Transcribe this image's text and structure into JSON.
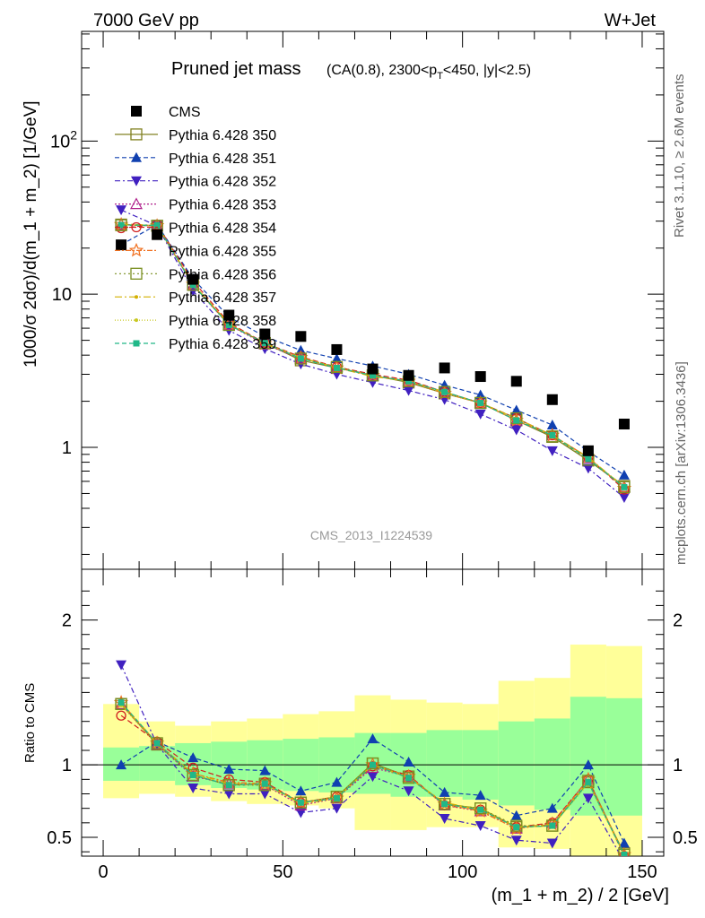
{
  "header": {
    "left": "7000 GeV pp",
    "right": "W+Jet"
  },
  "side_labels": {
    "rivet": "Rivet 3.1.10, ≥ 2.6M events",
    "mcplots": "mcplots.cern.ch [arXiv:1306.3436]"
  },
  "chart_data": [
    {
      "type": "scatter",
      "title_main": "Pruned jet mass",
      "title_sub_pre": "(CA(0.8), 2300<p",
      "title_sub_sub": "T",
      "title_sub_post": "<450, |y|<2.5)",
      "watermark": "CMS_2013_I1224539",
      "ylabel": "1000/σ 2dσ)/d(m_1 + m_2) [1/GeV]",
      "yscale": "log",
      "ylim": [
        0.16,
        520
      ],
      "xlim": [
        -6,
        156
      ],
      "x": [
        5,
        15,
        25,
        35,
        45,
        55,
        65,
        75,
        85,
        95,
        105,
        115,
        125,
        135,
        145
      ],
      "yticks": [
        "1",
        "10",
        "10^2"
      ],
      "series": [
        {
          "name": "CMS",
          "color": "#000000",
          "marker": "square-filled",
          "dash": "",
          "values": [
            21,
            24.5,
            12.5,
            7.3,
            5.5,
            5.3,
            4.35,
            3.25,
            2.95,
            3.3,
            2.9,
            2.7,
            2.05,
            0.95,
            1.42
          ]
        },
        {
          "name": "Pythia 6.428 350",
          "color": "#808020",
          "marker": "square-open",
          "dash": "",
          "values": [
            28.5,
            28,
            11.5,
            6.3,
            4.8,
            3.7,
            3.3,
            2.95,
            2.65,
            2.25,
            1.95,
            1.5,
            1.17,
            0.82,
            0.56
          ]
        },
        {
          "name": "Pythia 6.428 351",
          "color": "#1040b0",
          "marker": "triangle-up",
          "dash": "5,3",
          "values": [
            21,
            28.5,
            12.6,
            7.1,
            5.3,
            4.3,
            3.8,
            3.4,
            3.0,
            2.55,
            2.2,
            1.75,
            1.4,
            0.94,
            0.66
          ]
        },
        {
          "name": "Pythia 6.428 352",
          "color": "#4020c0",
          "marker": "triangle-down",
          "dash": "6,3,2,3",
          "values": [
            35.5,
            28,
            10.5,
            5.8,
            4.4,
            3.5,
            3.0,
            2.65,
            2.35,
            2.05,
            1.65,
            1.3,
            0.95,
            0.73,
            0.47
          ]
        },
        {
          "name": "Pythia 6.428 353",
          "color": "#b0208c",
          "marker": "triangle-open",
          "dash": "2,2",
          "values": [
            28.5,
            28,
            11.4,
            6.3,
            4.7,
            3.8,
            3.35,
            2.95,
            2.7,
            2.3,
            1.95,
            1.5,
            1.2,
            0.85,
            0.55
          ]
        },
        {
          "name": "Pythia 6.428 354",
          "color": "#d02020",
          "marker": "circle-open",
          "dash": "6,3",
          "values": [
            27,
            28.5,
            12.2,
            6.5,
            4.8,
            3.9,
            3.35,
            3.0,
            2.75,
            2.3,
            1.95,
            1.55,
            1.2,
            0.86,
            0.53
          ]
        },
        {
          "name": "Pythia 6.428 355",
          "color": "#f07020",
          "marker": "star-open",
          "dash": "6,2,2,2",
          "values": [
            28.5,
            28,
            11.6,
            6.4,
            4.75,
            3.85,
            3.3,
            2.95,
            2.7,
            2.25,
            1.95,
            1.5,
            1.2,
            0.86,
            0.54
          ]
        },
        {
          "name": "Pythia 6.428 356",
          "color": "#7a8f20",
          "marker": "square-open",
          "dash": "2,3",
          "values": [
            28.2,
            28,
            11.5,
            6.3,
            4.8,
            3.8,
            3.35,
            2.95,
            2.7,
            2.3,
            1.95,
            1.55,
            1.18,
            0.83,
            0.55
          ]
        },
        {
          "name": "Pythia 6.428 357",
          "color": "#d4b000",
          "marker": "dot",
          "dash": "8,3,2,3",
          "values": [
            28.7,
            28.2,
            11.7,
            6.4,
            4.75,
            3.85,
            3.3,
            2.9,
            2.7,
            2.3,
            1.95,
            1.55,
            1.2,
            0.86,
            0.55
          ]
        },
        {
          "name": "Pythia 6.428 358",
          "color": "#c8c820",
          "marker": "dot",
          "dash": "1,2",
          "values": [
            28.4,
            28,
            11.6,
            6.35,
            4.8,
            3.85,
            3.35,
            2.95,
            2.7,
            2.25,
            1.95,
            1.5,
            1.2,
            0.84,
            0.56
          ]
        },
        {
          "name": "Pythia 6.428 359",
          "color": "#20b888",
          "marker": "square-filled-small",
          "dash": "5,3",
          "values": [
            28.3,
            28.2,
            11.5,
            6.3,
            4.8,
            3.8,
            3.3,
            2.95,
            2.7,
            2.3,
            1.95,
            1.5,
            1.2,
            0.84,
            0.55
          ]
        }
      ]
    },
    {
      "type": "line",
      "ylabel": "Ratio to CMS",
      "xlabel": "(m_1 + m_2) / 2 [GeV]",
      "ylim": [
        0.37,
        2.35
      ],
      "yticks": [
        "0.5",
        "1",
        "2"
      ],
      "xticks": [
        "0",
        "50",
        "100",
        "150"
      ],
      "band_edges": [
        0,
        10,
        20,
        30,
        40,
        50,
        60,
        70,
        80,
        90,
        100,
        110,
        120,
        130,
        140,
        150
      ],
      "band_yellow": [
        [
          0.77,
          1.42
        ],
        [
          0.8,
          1.3
        ],
        [
          0.78,
          1.27
        ],
        [
          0.75,
          1.3
        ],
        [
          0.73,
          1.32
        ],
        [
          0.72,
          1.35
        ],
        [
          0.7,
          1.37
        ],
        [
          0.55,
          1.48
        ],
        [
          0.55,
          1.45
        ],
        [
          0.57,
          1.43
        ],
        [
          0.57,
          1.42
        ],
        [
          0.43,
          1.58
        ],
        [
          0.42,
          1.6
        ],
        [
          0.3,
          1.83
        ],
        [
          0.3,
          1.82
        ]
      ],
      "band_green": [
        [
          0.89,
          1.12
        ],
        [
          0.89,
          1.13
        ],
        [
          0.86,
          1.15
        ],
        [
          0.84,
          1.16
        ],
        [
          0.83,
          1.17
        ],
        [
          0.82,
          1.18
        ],
        [
          0.81,
          1.19
        ],
        [
          0.8,
          1.22
        ],
        [
          0.78,
          1.22
        ],
        [
          0.78,
          1.24
        ],
        [
          0.76,
          1.24
        ],
        [
          0.72,
          1.3
        ],
        [
          0.69,
          1.32
        ],
        [
          0.65,
          1.47
        ],
        [
          0.65,
          1.46
        ]
      ],
      "ratios": [
        [
          1.42,
          1.14,
          0.93,
          0.86,
          0.87,
          0.74,
          0.78,
          1.01,
          0.92,
          0.73,
          0.7,
          0.57,
          0.58,
          0.88,
          0.39
        ],
        [
          1.0,
          1.16,
          1.05,
          0.97,
          0.96,
          0.82,
          0.88,
          1.18,
          1.02,
          0.81,
          0.79,
          0.65,
          0.7,
          1.0,
          0.46
        ],
        [
          1.69,
          1.14,
          0.84,
          0.8,
          0.8,
          0.67,
          0.7,
          0.92,
          0.82,
          0.63,
          0.58,
          0.48,
          0.46,
          0.77,
          0.33
        ],
        [
          1.42,
          1.14,
          0.92,
          0.87,
          0.86,
          0.72,
          0.77,
          0.98,
          0.92,
          0.72,
          0.68,
          0.56,
          0.6,
          0.9,
          0.38
        ],
        [
          1.34,
          1.16,
          0.98,
          0.9,
          0.88,
          0.74,
          0.78,
          0.99,
          0.93,
          0.72,
          0.69,
          0.57,
          0.6,
          0.9,
          0.37
        ],
        [
          1.43,
          1.15,
          0.94,
          0.88,
          0.87,
          0.74,
          0.77,
          1.0,
          0.92,
          0.73,
          0.68,
          0.56,
          0.59,
          0.9,
          0.38
        ],
        [
          1.42,
          1.15,
          0.93,
          0.86,
          0.86,
          0.74,
          0.78,
          1.01,
          0.91,
          0.73,
          0.7,
          0.58,
          0.58,
          0.89,
          0.38
        ],
        [
          1.42,
          1.15,
          0.94,
          0.87,
          0.87,
          0.73,
          0.77,
          1.0,
          0.91,
          0.74,
          0.69,
          0.57,
          0.59,
          0.88,
          0.38
        ],
        [
          1.41,
          1.14,
          0.93,
          0.86,
          0.86,
          0.74,
          0.78,
          1.0,
          0.92,
          0.72,
          0.7,
          0.57,
          0.58,
          0.87,
          0.38
        ],
        [
          1.43,
          1.15,
          0.93,
          0.86,
          0.87,
          0.74,
          0.77,
          1.0,
          0.91,
          0.73,
          0.69,
          0.57,
          0.58,
          0.88,
          0.38
        ]
      ]
    }
  ]
}
